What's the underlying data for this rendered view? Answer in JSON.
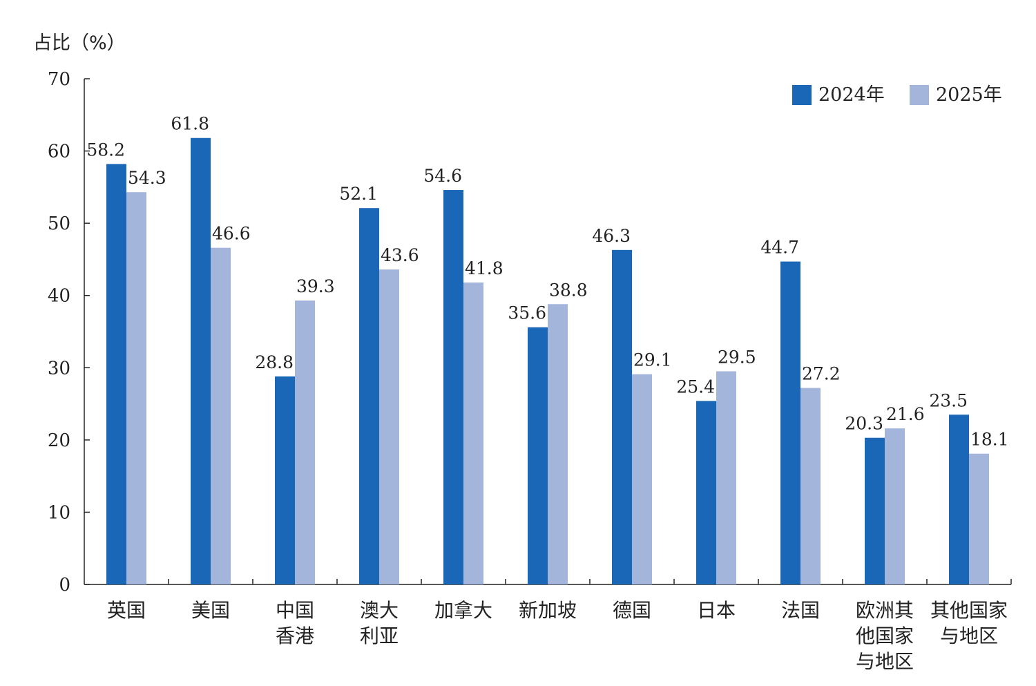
{
  "chart_data": {
    "type": "bar",
    "ylabel": "占比（%）",
    "ylim": [
      0,
      70
    ],
    "yticks": [
      "0",
      "10",
      "20",
      "30",
      "40",
      "50",
      "60",
      "70"
    ],
    "categories": [
      [
        "英国"
      ],
      [
        "美国"
      ],
      [
        "中国",
        "香港"
      ],
      [
        "澳大",
        "利亚"
      ],
      [
        "加拿大"
      ],
      [
        "新加坡"
      ],
      [
        "德国"
      ],
      [
        "日本"
      ],
      [
        "法国"
      ],
      [
        "欧洲其",
        "他国家",
        "与地区"
      ],
      [
        "其他国家",
        "与地区"
      ]
    ],
    "series": [
      {
        "name": "2024年",
        "color": "#1a67b8",
        "values": [
          58.2,
          61.8,
          28.8,
          52.1,
          54.6,
          35.6,
          46.3,
          25.4,
          44.7,
          20.3,
          23.5
        ],
        "labels": [
          "58.2",
          "61.8",
          "28.8",
          "52.1",
          "54.6",
          "35.6",
          "46.3",
          "25.4",
          "44.7",
          "20.3",
          "23.5"
        ]
      },
      {
        "name": "2025年",
        "color": "#a4b5dc",
        "values": [
          54.3,
          46.6,
          39.3,
          43.6,
          41.8,
          38.8,
          29.1,
          29.5,
          27.2,
          21.6,
          18.1
        ],
        "labels": [
          "54.3",
          "46.6",
          "39.3",
          "43.6",
          "41.8",
          "38.8",
          "29.1",
          "29.5",
          "27.2",
          "21.6",
          "18.1"
        ]
      }
    ],
    "grid": false,
    "legend": "top-right"
  }
}
